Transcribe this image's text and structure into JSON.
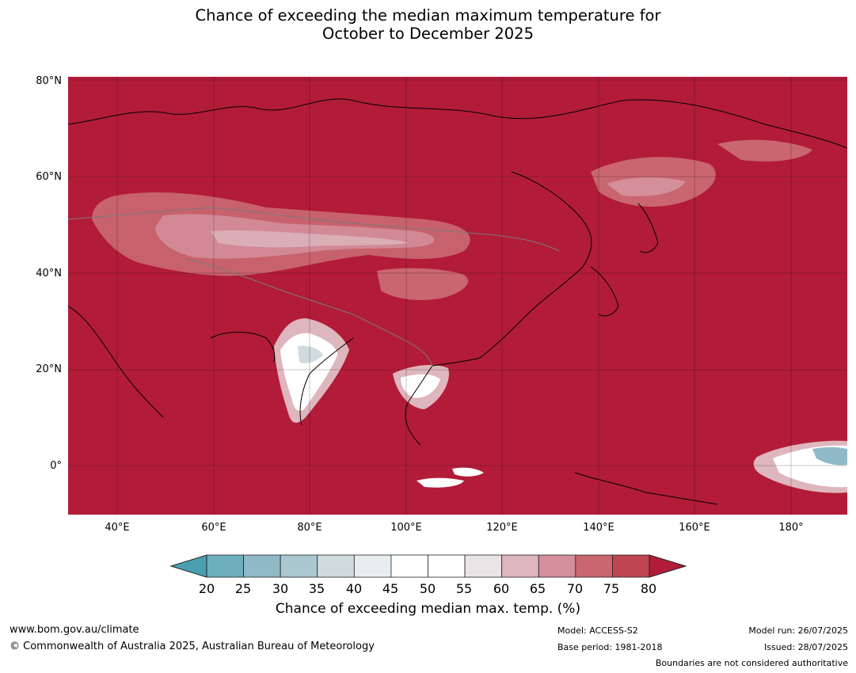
{
  "title_line1": "Chance of exceeding the median maximum temperature for",
  "title_line2": "October to December 2025",
  "map": {
    "background_color": "#b21c39",
    "lat_labels": [
      "80°N",
      "60°N",
      "40°N",
      "20°N",
      "0°"
    ],
    "lon_labels": [
      "40°E",
      "60°E",
      "80°E",
      "100°E",
      "120°E",
      "140°E",
      "160°E",
      "180°"
    ]
  },
  "colorbar": {
    "tick_labels": [
      "20",
      "25",
      "30",
      "35",
      "40",
      "45",
      "50",
      "55",
      "60",
      "65",
      "70",
      "75",
      "80"
    ],
    "colors": [
      "#4aa0b0",
      "#6eafbd",
      "#8fb9c6",
      "#a9c8cf",
      "#cfdbde",
      "#e8eef0",
      "#ffffff",
      "#ffffff",
      "#e9e4e6",
      "#deb6bd",
      "#d48f9a",
      "#c9666f",
      "#bf4552",
      "#b21c39"
    ],
    "title": "Chance of exceeding median max. temp. (%)"
  },
  "footer": {
    "website": "www.bom.gov.au/climate",
    "copyright": "© Commonwealth of Australia 2025, Australian Bureau of Meteorology",
    "model": "Model: ACCESS-S2",
    "base_period": "Base period: 1981-2018",
    "model_run": "Model run: 26/07/2025",
    "issued": "Issued: 28/07/2025",
    "disclaimer": "Boundaries are not considered authoritative"
  }
}
